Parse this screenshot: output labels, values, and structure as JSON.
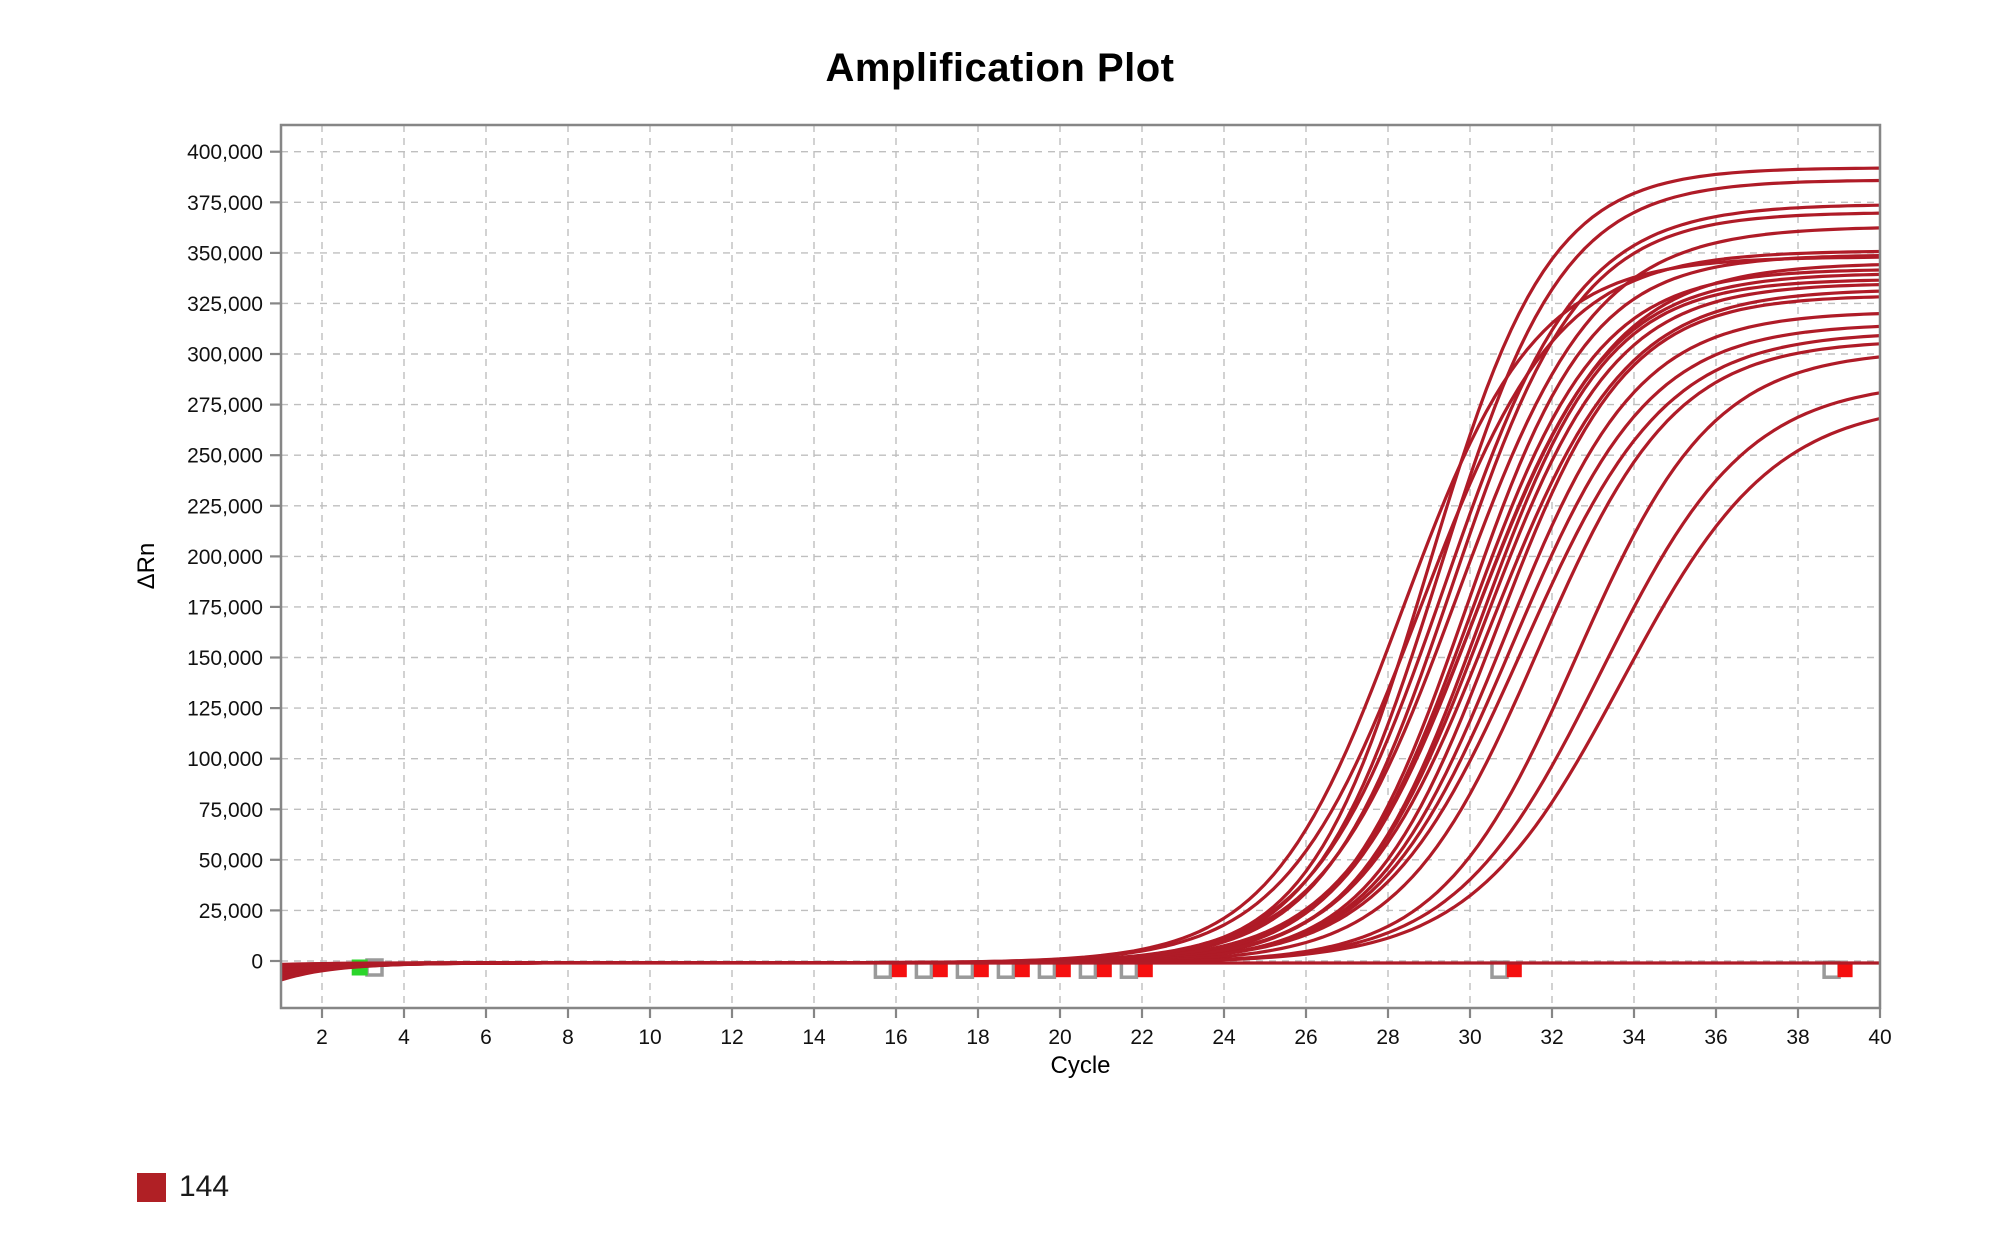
{
  "title": "Amplification Plot",
  "legend": {
    "items": [
      {
        "label": "144",
        "color": "#b02025"
      }
    ]
  },
  "chart_data": {
    "type": "line",
    "title": "Amplification Plot",
    "xlabel": "Cycle",
    "ylabel": "ΔRn",
    "xlim": [
      1,
      40
    ],
    "ylim": [
      -23000,
      413000
    ],
    "grid": true,
    "x_ticks": [
      2,
      4,
      6,
      8,
      10,
      12,
      14,
      16,
      18,
      20,
      22,
      24,
      26,
      28,
      30,
      32,
      34,
      36,
      38,
      40
    ],
    "x_tick_labels": [
      "2",
      "4",
      "6",
      "8",
      "10",
      "12",
      "14",
      "16",
      "18",
      "20",
      "22",
      "24",
      "26",
      "28",
      "30",
      "32",
      "34",
      "36",
      "38",
      "40"
    ],
    "y_ticks": [
      0,
      25000,
      50000,
      75000,
      100000,
      125000,
      150000,
      175000,
      200000,
      225000,
      250000,
      275000,
      300000,
      325000,
      350000,
      375000,
      400000
    ],
    "y_tick_labels": [
      "0",
      "25,000",
      "50,000",
      "75,000",
      "100,000",
      "125,000",
      "150,000",
      "175,000",
      "200,000",
      "225,000",
      "250,000",
      "275,000",
      "300,000",
      "325,000",
      "350,000",
      "375,000",
      "400,000"
    ],
    "colors": {
      "series": "#AF1B27",
      "marker_red": "#F50F0F",
      "marker_green": "#2BD52B",
      "marker_open_stroke": "#9A9A9A",
      "grid": "#BFBFBF",
      "axis": "#868686"
    },
    "model": "dRn(c) = offset + base*exp(-(c-1)/1.3) + plateau/(1+exp(-k*(c-mid)))",
    "series": [
      {
        "base": -8500,
        "mid": 29.0,
        "k": 0.68,
        "plateau": 393000
      },
      {
        "base": -6000,
        "mid": 29.25,
        "k": 0.66,
        "plateau": 387000
      },
      {
        "base": -7500,
        "mid": 29.4,
        "k": 0.62,
        "plateau": 375000
      },
      {
        "base": -3000,
        "mid": 29.55,
        "k": 0.64,
        "plateau": 371000
      },
      {
        "base": -5000,
        "mid": 29.7,
        "k": 0.6,
        "plateau": 364000
      },
      {
        "base": -2000,
        "mid": 28.35,
        "k": 0.62,
        "plateau": 349000
      },
      {
        "base": -4500,
        "mid": 28.8,
        "k": 0.6,
        "plateau": 352000
      },
      {
        "base": -1000,
        "mid": 29.9,
        "k": 0.66,
        "plateau": 350000
      },
      {
        "base": -6500,
        "mid": 30.0,
        "k": 0.64,
        "plateau": 343000
      },
      {
        "base": -2500,
        "mid": 30.1,
        "k": 0.62,
        "plateau": 341000
      },
      {
        "base": -8000,
        "mid": 30.15,
        "k": 0.6,
        "plateau": 346000
      },
      {
        "base": -3500,
        "mid": 30.25,
        "k": 0.65,
        "plateau": 338000
      },
      {
        "base": -5500,
        "mid": 30.35,
        "k": 0.63,
        "plateau": 336000
      },
      {
        "base": -1500,
        "mid": 30.5,
        "k": 0.61,
        "plateau": 333000
      },
      {
        "base": -7000,
        "mid": 30.65,
        "k": 0.64,
        "plateau": 330000
      },
      {
        "base": -4000,
        "mid": 30.85,
        "k": 0.62,
        "plateau": 322000
      },
      {
        "base": -2800,
        "mid": 31.05,
        "k": 0.6,
        "plateau": 316000
      },
      {
        "base": -6200,
        "mid": 31.3,
        "k": 0.58,
        "plateau": 312000
      },
      {
        "base": -800,
        "mid": 31.65,
        "k": 0.6,
        "plateau": 308000
      },
      {
        "base": -5200,
        "mid": 32.6,
        "k": 0.6,
        "plateau": 303000
      },
      {
        "base": -3800,
        "mid": 33.2,
        "k": 0.56,
        "plateau": 288000
      },
      {
        "base": -7800,
        "mid": 33.7,
        "k": 0.54,
        "plateau": 278000
      },
      {
        "base": -1500,
        "mid": 0,
        "k": 0,
        "plateau": 0,
        "offset": -1000
      }
    ],
    "series_offset_default": -900,
    "markers": [
      {
        "cycle": 3.28,
        "value": -3200,
        "type": "open"
      },
      {
        "cycle": 2.92,
        "value": -3200,
        "type": "green"
      },
      {
        "cycle": 15.68,
        "value": -4300,
        "type": "open"
      },
      {
        "cycle": 16.08,
        "value": -4300,
        "type": "red"
      },
      {
        "cycle": 16.68,
        "value": -4300,
        "type": "open"
      },
      {
        "cycle": 17.08,
        "value": -4300,
        "type": "red"
      },
      {
        "cycle": 17.68,
        "value": -4300,
        "type": "open"
      },
      {
        "cycle": 18.08,
        "value": -4300,
        "type": "red"
      },
      {
        "cycle": 18.68,
        "value": -4300,
        "type": "open"
      },
      {
        "cycle": 19.08,
        "value": -4300,
        "type": "red"
      },
      {
        "cycle": 19.68,
        "value": -4300,
        "type": "open"
      },
      {
        "cycle": 20.08,
        "value": -4300,
        "type": "red"
      },
      {
        "cycle": 20.68,
        "value": -4300,
        "type": "open"
      },
      {
        "cycle": 21.08,
        "value": -4300,
        "type": "red"
      },
      {
        "cycle": 21.68,
        "value": -4300,
        "type": "open"
      },
      {
        "cycle": 22.08,
        "value": -4300,
        "type": "red"
      },
      {
        "cycle": 30.72,
        "value": -4300,
        "type": "open"
      },
      {
        "cycle": 31.08,
        "value": -4300,
        "type": "red"
      },
      {
        "cycle": 38.82,
        "value": -4300,
        "type": "open"
      },
      {
        "cycle": 39.15,
        "value": -4300,
        "type": "red"
      }
    ]
  }
}
